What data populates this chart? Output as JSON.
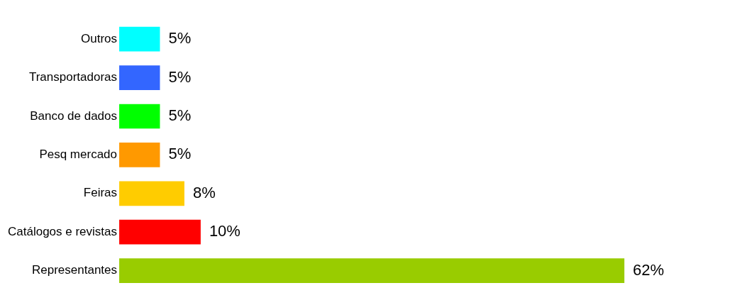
{
  "chart_data": {
    "type": "bar",
    "orientation": "horizontal",
    "categories": [
      "Outros",
      "Transportadoras",
      "Banco de dados",
      "Pesq mercado",
      "Feiras",
      "Catálogos e revistas",
      "Representantes"
    ],
    "values": [
      5,
      5,
      5,
      5,
      8,
      10,
      62
    ],
    "colors": [
      "#00ffff",
      "#3366ff",
      "#00ff00",
      "#ff9900",
      "#ffcc00",
      "#ff0000",
      "#99cc00"
    ],
    "value_labels": [
      "5%",
      "5%",
      "5%",
      "5%",
      "8%",
      "10%",
      "62%"
    ],
    "legend": false
  }
}
